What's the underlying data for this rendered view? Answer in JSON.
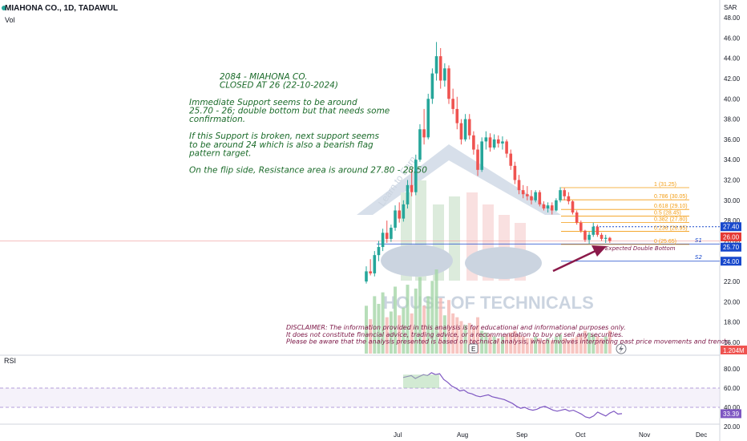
{
  "header": {
    "title": "MIAHONA CO., 1D, TADAWUL",
    "volume_label": "Vol",
    "currency": "SAR"
  },
  "watermark": {
    "text": "HOUSE OF TECHNICALS",
    "arc_text": "Learn to Earn"
  },
  "annotation": {
    "lines": [
      "2084 - MIAHONA CO.",
      "CLOSED AT 26 (22-10-2024)",
      "",
      "Immediate Support seems to be around",
      "25.70 - 26; double bottom but that needs some",
      "confirmation.",
      "",
      "If this Support is broken, next support seems",
      "to be around 24 which is also a bearish flag",
      "pattern target.",
      "",
      "On the flip side, Resistance area is around 27.80 - 28.50"
    ],
    "color": "#1b6b2a"
  },
  "disclaimer": {
    "lines": [
      "DISCLAIMER: The information provided in this analysis is for educational and informational purposes only.",
      "It does not constitute financial advice, trading advice, or a recommendation to buy or sell any securities.",
      "Please be aware that the analysis presented is based on technical analysis, which involves interpreting past price movements and trends."
    ],
    "color": "#7b1545"
  },
  "pattern_label": "Expected Double Bottom",
  "support_labels": {
    "s1": "S1",
    "s2": "S2"
  },
  "e_marker": "E",
  "colors": {
    "up": "#26a69a",
    "down": "#ef5350",
    "fib": "#f39c12",
    "rsi": "#7e57c2",
    "arrow": "#8b1a4a",
    "axis": "#131722"
  },
  "chart_data": {
    "type": "candlestick",
    "title": "MIAHONA CO., 1D, TADAWUL",
    "price_axis": {
      "range": [
        16,
        48
      ],
      "ticks": [
        "48.00",
        "46.00",
        "44.00",
        "42.00",
        "40.00",
        "38.00",
        "36.00",
        "34.00",
        "32.00",
        "30.00",
        "28.00",
        "26.00",
        "24.00",
        "22.00",
        "20.00",
        "18.00",
        "16.00"
      ]
    },
    "x_axis": {
      "ticks": [
        "Jul",
        "Aug",
        "Sep",
        "Oct",
        "Nov",
        "Dec"
      ]
    },
    "candles_ohlc": [
      [
        22.0,
        23.5,
        21.8,
        23.0
      ],
      [
        23.0,
        24.2,
        22.6,
        22.8
      ],
      [
        22.8,
        25.0,
        22.5,
        24.6
      ],
      [
        24.6,
        26.0,
        24.0,
        25.4
      ],
      [
        25.4,
        27.2,
        25.0,
        26.8
      ],
      [
        26.8,
        28.0,
        25.8,
        26.2
      ],
      [
        26.2,
        27.6,
        25.9,
        27.3
      ],
      [
        27.3,
        29.5,
        27.0,
        29.0
      ],
      [
        29.0,
        29.8,
        27.8,
        28.2
      ],
      [
        28.2,
        30.0,
        27.9,
        29.6
      ],
      [
        29.6,
        32.0,
        29.2,
        31.5
      ],
      [
        31.5,
        33.0,
        30.4,
        30.8
      ],
      [
        30.8,
        34.5,
        30.5,
        34.0
      ],
      [
        34.0,
        37.5,
        33.8,
        37.0
      ],
      [
        37.0,
        39.0,
        35.5,
        36.2
      ],
      [
        36.2,
        40.5,
        36.0,
        40.0
      ],
      [
        40.0,
        43.0,
        39.5,
        42.5
      ],
      [
        42.5,
        45.6,
        41.8,
        44.2
      ],
      [
        44.2,
        45.0,
        41.0,
        41.8
      ],
      [
        41.8,
        43.5,
        41.2,
        43.0
      ],
      [
        43.0,
        43.3,
        39.5,
        40.0
      ],
      [
        40.0,
        41.0,
        38.5,
        39.0
      ],
      [
        39.0,
        40.2,
        37.0,
        37.6
      ],
      [
        37.6,
        38.0,
        35.5,
        36.0
      ],
      [
        36.0,
        38.5,
        35.8,
        38.0
      ],
      [
        38.0,
        38.5,
        36.0,
        36.4
      ],
      [
        36.4,
        36.8,
        34.5,
        35.0
      ],
      [
        35.0,
        35.5,
        32.4,
        33.0
      ],
      [
        33.0,
        36.2,
        32.8,
        35.8
      ],
      [
        35.8,
        36.8,
        35.0,
        36.2
      ],
      [
        36.2,
        36.6,
        34.8,
        35.2
      ],
      [
        35.2,
        36.5,
        35.0,
        36.0
      ],
      [
        36.0,
        36.4,
        35.2,
        35.6
      ],
      [
        35.6,
        36.3,
        35.0,
        35.8
      ],
      [
        35.8,
        36.0,
        34.2,
        34.6
      ],
      [
        34.6,
        35.0,
        33.0,
        33.4
      ],
      [
        33.4,
        33.8,
        31.6,
        32.0
      ],
      [
        32.0,
        32.5,
        30.6,
        31.0
      ],
      [
        31.0,
        31.5,
        30.2,
        30.6
      ],
      [
        30.6,
        31.4,
        30.0,
        30.4
      ],
      [
        30.4,
        31.0,
        29.6,
        30.0
      ],
      [
        30.0,
        31.0,
        29.8,
        30.8
      ],
      [
        30.8,
        31.0,
        29.4,
        29.6
      ],
      [
        29.6,
        29.9,
        29.0,
        29.2
      ],
      [
        29.2,
        29.8,
        28.8,
        29.5
      ],
      [
        29.5,
        29.8,
        28.6,
        29.0
      ],
      [
        29.0,
        30.2,
        28.9,
        30.0
      ],
      [
        30.0,
        31.3,
        29.8,
        31.0
      ],
      [
        31.0,
        31.2,
        30.0,
        30.4
      ],
      [
        30.4,
        30.8,
        29.6,
        29.9
      ],
      [
        29.9,
        30.0,
        28.6,
        28.8
      ],
      [
        28.8,
        29.0,
        27.6,
        27.8
      ],
      [
        27.8,
        28.0,
        26.8,
        27.0
      ],
      [
        27.0,
        27.1,
        25.9,
        26.1
      ],
      [
        26.1,
        26.9,
        25.7,
        26.6
      ],
      [
        26.6,
        27.8,
        26.4,
        27.4
      ],
      [
        27.4,
        27.6,
        26.4,
        26.6
      ],
      [
        26.6,
        26.8,
        26.0,
        26.2
      ],
      [
        26.2,
        26.6,
        25.8,
        26.3
      ],
      [
        26.3,
        26.4,
        25.8,
        26.0
      ]
    ],
    "volume_millions": [
      2.5,
      1.8,
      3.0,
      2.6,
      3.2,
      1.9,
      2.2,
      3.5,
      2.0,
      2.4,
      3.6,
      2.1,
      3.4,
      4.0,
      2.5,
      3.0,
      3.8,
      4.4,
      2.9,
      2.0,
      2.8,
      2.1,
      1.9,
      1.7,
      1.5,
      1.6,
      1.4,
      1.9,
      1.2,
      1.1,
      1.0,
      0.9,
      0.8,
      0.9,
      1.0,
      1.1,
      1.2,
      1.0,
      0.9,
      0.8,
      0.8,
      0.9,
      0.8,
      0.7,
      0.8,
      0.7,
      0.9,
      1.0,
      0.8,
      0.7,
      0.8,
      0.9,
      1.0,
      1.2,
      1.1,
      1.0,
      0.9,
      0.8,
      0.9,
      1.204
    ],
    "volume_last": "1.204M",
    "fibonacci": [
      {
        "label": "1 (31.25)",
        "value": 31.25
      },
      {
        "label": "0.786 (30.05)",
        "value": 30.05
      },
      {
        "label": "0.618 (29.10)",
        "value": 29.1
      },
      {
        "label": "0.5 (28.45)",
        "value": 28.45
      },
      {
        "label": "0.382 (27.80)",
        "value": 27.8
      },
      {
        "label": "0.236 (26.95)",
        "value": 26.95
      },
      {
        "label": "0 (25.65)",
        "value": 25.65
      }
    ],
    "price_badges": [
      {
        "label": "27.40",
        "value": 27.4,
        "color": "#1848cc"
      },
      {
        "label": "26.00",
        "value": 26.0,
        "color": "#e53935"
      },
      {
        "label": "25.70",
        "value": 25.7,
        "color": "#1848cc"
      },
      {
        "label": "24.00",
        "value": 24.0,
        "color": "#1848cc"
      }
    ],
    "levels": {
      "resistance_dotted": 27.4,
      "s1": 25.7,
      "s2": 24.0
    },
    "rsi": {
      "label": "RSI",
      "range": [
        20,
        80
      ],
      "ticks": [
        "80.00",
        "60.00",
        "40.00",
        "20.00"
      ],
      "overbought": 60,
      "oversold": 40,
      "last": "33.39",
      "values": [
        71,
        72,
        73,
        70,
        72,
        74,
        73,
        76,
        74,
        75,
        69,
        66,
        62,
        60,
        57,
        58,
        55,
        54,
        52,
        51,
        52,
        53,
        51,
        50,
        49,
        48,
        46,
        44,
        41,
        39,
        40,
        38,
        37,
        38,
        40,
        41,
        39,
        37,
        36,
        37,
        38,
        36,
        37,
        35,
        33,
        30,
        29,
        31,
        35,
        33,
        31,
        34,
        36,
        33,
        33.39
      ]
    }
  }
}
